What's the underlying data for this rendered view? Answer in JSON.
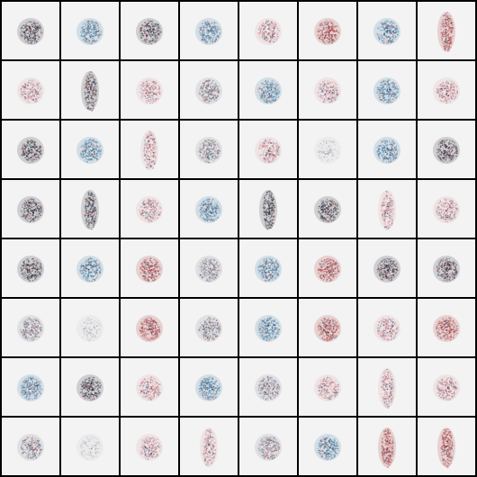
{
  "grid": {
    "rows": 8,
    "cols": 8,
    "background_color": "#000000",
    "tile_color": "#f3f3f3",
    "palette": {
      "dark": "#2a2530",
      "blue": "#3f7fa8",
      "red": "#b03a3a",
      "pink": "#d9a0a8",
      "gray": "#8a8a95"
    },
    "samples": [
      [
        "round-dark",
        "round-blue",
        "round-dark",
        "round-blue",
        "round-pink",
        "round-red",
        "round-blue",
        "tall-red"
      ],
      [
        "round-pink",
        "tall-dark",
        "round-pink",
        "round-gray",
        "round-blue",
        "round-pink",
        "round-blue",
        "round-pink"
      ],
      [
        "round-dark",
        "round-blue",
        "tall-pink",
        "round-gray",
        "round-pink",
        "round-faint",
        "round-blue",
        "round-dark"
      ],
      [
        "round-dark",
        "tall-dark",
        "round-pink",
        "round-blue",
        "tall-dark",
        "round-dark",
        "tall-pink",
        "round-pink"
      ],
      [
        "round-dark",
        "round-blue",
        "round-red",
        "round-gray",
        "round-blue",
        "round-red",
        "round-dark",
        "round-dark"
      ],
      [
        "round-gray",
        "round-faint",
        "round-red",
        "round-gray",
        "round-blue",
        "round-red",
        "round-pink",
        "round-red"
      ],
      [
        "round-blue",
        "round-dark",
        "round-pink",
        "round-blue",
        "round-gray",
        "round-pink",
        "tall-pink",
        "round-pink"
      ],
      [
        "round-gray",
        "round-faint",
        "round-pink",
        "tall-pink",
        "round-gray",
        "round-blue",
        "tall-red",
        "tall-red"
      ]
    ]
  }
}
